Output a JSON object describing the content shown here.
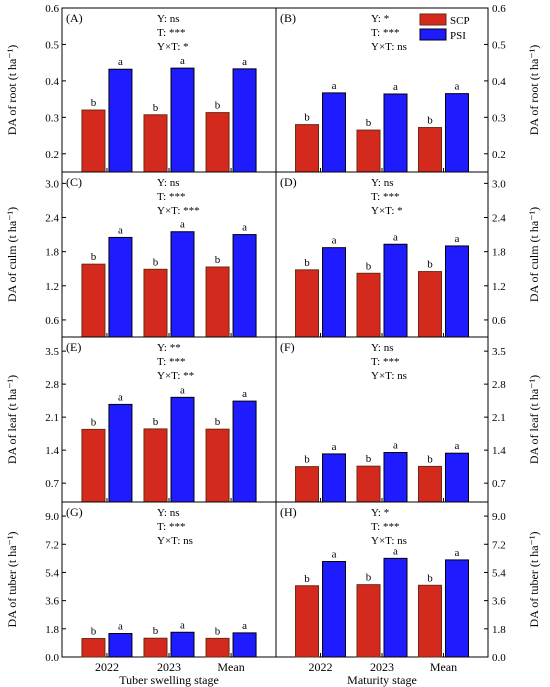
{
  "chart_data": {
    "type": "bar",
    "legend": {
      "placement": "top-right",
      "items": [
        {
          "name": "SCP",
          "color": "#d42a1e",
          "edge": "#6b2a10"
        },
        {
          "name": "PSI",
          "color": "#1f1bff",
          "edge": "#000000"
        }
      ]
    },
    "categories": [
      "2022",
      "2023",
      "Mean"
    ],
    "stages": [
      "Tuber swelling stage",
      "Maturity stage"
    ],
    "rows": [
      {
        "ylabel": "DA of root (t ha⁻¹)",
        "ylim": [
          0.15,
          0.6
        ],
        "ticks": [
          0.2,
          0.3,
          0.4,
          0.5,
          0.6
        ],
        "tick_labels": [
          "0.2",
          "0.3",
          "0.4",
          "0.5",
          "0.6"
        ],
        "panels": [
          {
            "label": "(A)",
            "stats": [
              "Y: ns",
              "T: ***",
              "Y×T: *"
            ],
            "series": [
              {
                "name": "SCP",
                "values": [
                  0.32,
                  0.307,
                  0.313
                ],
                "letters": [
                  "b",
                  "b",
                  "b"
                ]
              },
              {
                "name": "PSI",
                "values": [
                  0.432,
                  0.435,
                  0.433
                ],
                "letters": [
                  "a",
                  "a",
                  "a"
                ]
              }
            ]
          },
          {
            "label": "(B)",
            "stats": [
              "Y: *",
              "T: ***",
              "Y×T: ns"
            ],
            "series": [
              {
                "name": "SCP",
                "values": [
                  0.28,
                  0.265,
                  0.272
                ],
                "letters": [
                  "b",
                  "b",
                  "b"
                ]
              },
              {
                "name": "PSI",
                "values": [
                  0.367,
                  0.364,
                  0.365
                ],
                "letters": [
                  "a",
                  "a",
                  "a"
                ]
              }
            ]
          }
        ]
      },
      {
        "ylabel": "DA of culm (t ha⁻¹)",
        "ylim": [
          0.3,
          3.2
        ],
        "ticks": [
          0.6,
          1.2,
          1.8,
          2.4,
          3.0
        ],
        "tick_labels": [
          "0.6",
          "1.2",
          "1.8",
          "2.4",
          "3.0"
        ],
        "panels": [
          {
            "label": "(C)",
            "stats": [
              "Y: ns",
              "T: ***",
              "Y×T: ***"
            ],
            "series": [
              {
                "name": "SCP",
                "values": [
                  1.58,
                  1.49,
                  1.53
                ],
                "letters": [
                  "b",
                  "b",
                  "b"
                ]
              },
              {
                "name": "PSI",
                "values": [
                  2.05,
                  2.15,
                  2.1
                ],
                "letters": [
                  "a",
                  "a",
                  "a"
                ]
              }
            ]
          },
          {
            "label": "(D)",
            "stats": [
              "Y: ns",
              "T: ***",
              "Y×T: *"
            ],
            "series": [
              {
                "name": "SCP",
                "values": [
                  1.48,
                  1.42,
                  1.45
                ],
                "letters": [
                  "b",
                  "b",
                  "b"
                ]
              },
              {
                "name": "PSI",
                "values": [
                  1.87,
                  1.93,
                  1.9
                ],
                "letters": [
                  "a",
                  "a",
                  "a"
                ]
              }
            ]
          }
        ]
      },
      {
        "ylabel": "DA of leaf (t ha⁻¹)",
        "ylim": [
          0.3,
          3.8
        ],
        "ticks": [
          0.7,
          1.4,
          2.1,
          2.8,
          3.5
        ],
        "tick_labels": [
          "0.7",
          "1.4",
          "2.1",
          "2.8",
          "3.5"
        ],
        "panels": [
          {
            "label": "(E)",
            "stats": [
              "Y: **",
              "T: ***",
              "Y×T: **"
            ],
            "series": [
              {
                "name": "SCP",
                "values": [
                  1.84,
                  1.85,
                  1.845
                ],
                "letters": [
                  "b",
                  "b",
                  "b"
                ]
              },
              {
                "name": "PSI",
                "values": [
                  2.37,
                  2.52,
                  2.44
                ],
                "letters": [
                  "a",
                  "a",
                  "a"
                ]
              }
            ]
          },
          {
            "label": "(F)",
            "stats": [
              "Y: ns",
              "T: ***",
              "Y×T: ns"
            ],
            "series": [
              {
                "name": "SCP",
                "values": [
                  1.05,
                  1.06,
                  1.055
                ],
                "letters": [
                  "b",
                  "b",
                  "b"
                ]
              },
              {
                "name": "PSI",
                "values": [
                  1.32,
                  1.35,
                  1.335
                ],
                "letters": [
                  "a",
                  "a",
                  "a"
                ]
              }
            ]
          }
        ]
      },
      {
        "ylabel": "DA of tuber (t ha⁻¹)",
        "ylim": [
          0.0,
          9.9
        ],
        "ticks": [
          0.0,
          1.8,
          3.6,
          5.4,
          7.2,
          9.0
        ],
        "tick_labels": [
          "0.0",
          "1.8",
          "3.6",
          "5.4",
          "7.2",
          "9.0"
        ],
        "panels": [
          {
            "label": "(G)",
            "stats": [
              "Y: ns",
              "T: ***",
              "Y×T: ns"
            ],
            "series": [
              {
                "name": "SCP",
                "values": [
                  1.18,
                  1.2,
                  1.19
                ],
                "letters": [
                  "b",
                  "b",
                  "b"
                ]
              },
              {
                "name": "PSI",
                "values": [
                  1.5,
                  1.58,
                  1.54
                ],
                "letters": [
                  "a",
                  "a",
                  "a"
                ]
              }
            ]
          },
          {
            "label": "(H)",
            "stats": [
              "Y: *",
              "T: ***",
              "Y×T: ns"
            ],
            "series": [
              {
                "name": "SCP",
                "values": [
                  4.55,
                  4.62,
                  4.58
                ],
                "letters": [
                  "b",
                  "b",
                  "b"
                ]
              },
              {
                "name": "PSI",
                "values": [
                  6.1,
                  6.3,
                  6.2
                ],
                "letters": [
                  "a",
                  "a",
                  "a"
                ]
              }
            ]
          }
        ]
      }
    ]
  }
}
